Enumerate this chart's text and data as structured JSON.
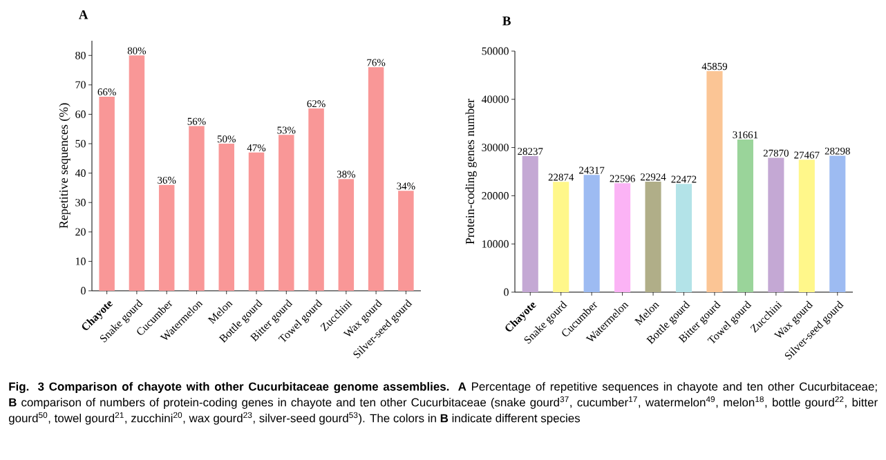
{
  "chart_data": [
    {
      "type": "bar",
      "title": "A",
      "ylabel": "Repetitive sequences (%)",
      "categories": [
        "**Chayote**",
        "Snake gourd",
        "Cucumber",
        "Watermelon",
        "Melon",
        "Bottle gourd",
        "Bitter gourd",
        "Towel gourd",
        "Zucchini",
        "Wax gourd",
        "Silver-seed gourd"
      ],
      "values": [
        66,
        80,
        36,
        56,
        50,
        47,
        53,
        62,
        38,
        76,
        34
      ],
      "value_labels": [
        "66%",
        "80%",
        "36%",
        "56%",
        "50%",
        "47%",
        "53%",
        "62%",
        "38%",
        "76%",
        "34%"
      ],
      "color": "#f99797",
      "ylim": [
        0,
        85
      ],
      "yticks": [
        0,
        10,
        20,
        30,
        40,
        50,
        60,
        70,
        80
      ],
      "grid": false,
      "annotations": [
        "**Fig. 3 Comparison of chayote with other Cucurbitaceae genome assemblies. A** Percentage of repetitive sequences in chayote and ten other Cucurbitaceae; **B** comparison of numbers of protein-coding genes in chayote and ten other Cucurbitaceae (snake gourd$^{37}$, cucumber$^{17}$, watermelon$^{49}$, melon$^{18}$, bottle gourd$^{22}$, bitter gourd$^{50}$, towel gourd$^{21}$, zucchini$^{20}$, wax gourd$^{23}$, silver-seed gourd$^{53}$). The colors in **B** indicate different species"
      ]
    },
    {
      "type": "bar",
      "title": "B",
      "ylabel": "Protein-coding genes number",
      "categories": [
        "**Chayote**",
        "Snake gourd",
        "Cucumber",
        "Watermelon",
        "Melon",
        "Bottle gourd",
        "Bitter gourd",
        "Towel gourd",
        "Zucchini",
        "Wax gourd",
        "Silver-seed gourd"
      ],
      "values": [
        28237,
        22874,
        24317,
        22596,
        22924,
        22472,
        45859,
        31661,
        27870,
        27467,
        28298
      ],
      "colors": [
        "#c4a8d4",
        "#fff78a",
        "#9dbbf2",
        "#fbb3f5",
        "#b0ae88",
        "#b3e3e8",
        "#fbc595",
        "#9ad49a",
        "#c4a8d4",
        "#fff78a",
        "#9dbbf2"
      ],
      "data_labels": true,
      "ylim": [
        0,
        50000
      ],
      "yticks": [
        0,
        10000,
        20000,
        30000,
        40000,
        50000
      ],
      "grid": false
    }
  ]
}
